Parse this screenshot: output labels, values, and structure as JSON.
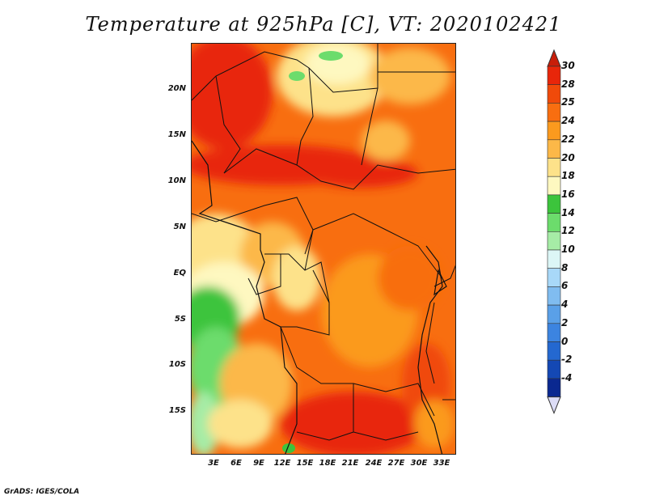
{
  "title": "Temperature at 925hPa [C], VT: 2020102421",
  "footer": "GrADS: IGES/COLA",
  "lat_ticks": [
    {
      "label": "20N",
      "value": 20
    },
    {
      "label": "15N",
      "value": 15
    },
    {
      "label": "10N",
      "value": 10
    },
    {
      "label": "5N",
      "value": 5
    },
    {
      "label": "EQ",
      "value": 0
    },
    {
      "label": "5S",
      "value": -5
    },
    {
      "label": "10S",
      "value": -10
    },
    {
      "label": "15S",
      "value": -15
    }
  ],
  "lon_ticks": [
    {
      "label": "3E",
      "value": 3
    },
    {
      "label": "6E",
      "value": 6
    },
    {
      "label": "9E",
      "value": 9
    },
    {
      "label": "12E",
      "value": 12
    },
    {
      "label": "15E",
      "value": 15
    },
    {
      "label": "18E",
      "value": 18
    },
    {
      "label": "21E",
      "value": 21
    },
    {
      "label": "24E",
      "value": 24
    },
    {
      "label": "27E",
      "value": 27
    },
    {
      "label": "30E",
      "value": 30
    },
    {
      "label": "33E",
      "value": 33
    }
  ],
  "colorbar": {
    "levels": [
      {
        "label": "30",
        "color": "#e8260a"
      },
      {
        "label": "28",
        "color": "#f04a0a"
      },
      {
        "label": "25",
        "color": "#f86e10"
      },
      {
        "label": "24",
        "color": "#fb9a1e"
      },
      {
        "label": "22",
        "color": "#fcb848"
      },
      {
        "label": "20",
        "color": "#fde28a"
      },
      {
        "label": "18",
        "color": "#fef8c0"
      },
      {
        "label": "16",
        "color": "#3cc43c"
      },
      {
        "label": "14",
        "color": "#6cdc6c"
      },
      {
        "label": "12",
        "color": "#a6eca6"
      },
      {
        "label": "10",
        "color": "#dcf6f6"
      },
      {
        "label": "8",
        "color": "#a8d8f8"
      },
      {
        "label": "6",
        "color": "#80bcf0"
      },
      {
        "label": "4",
        "color": "#5aa0e8"
      },
      {
        "label": "2",
        "color": "#3c84e0"
      },
      {
        "label": "0",
        "color": "#2468d0"
      },
      {
        "label": "-2",
        "color": "#1448b4"
      },
      {
        "label": "-4",
        "color": "#0a2890"
      }
    ],
    "top_color": "#c81e0a",
    "bottom_color": "#dcdcf6"
  }
}
